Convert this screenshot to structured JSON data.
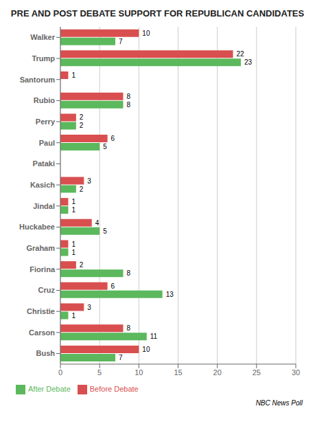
{
  "chart_data": {
    "type": "bar",
    "orientation": "horizontal",
    "title": "PRE AND POST DEBATE SUPPORT FOR REPUBLICAN CANDIDATES",
    "categories": [
      "Walker",
      "Trump",
      "Santorum",
      "Rubio",
      "Perry",
      "Paul",
      "Pataki",
      "Kasich",
      "Jindal",
      "Huckabee",
      "Graham",
      "Fiorina",
      "Cruz",
      "Christie",
      "Carson",
      "Bush"
    ],
    "series": [
      {
        "name": "Before Debate",
        "color": "#d94f4f",
        "values": [
          10,
          22,
          1,
          8,
          2,
          6,
          0,
          3,
          1,
          4,
          1,
          2,
          6,
          3,
          8,
          10
        ]
      },
      {
        "name": "After Debate",
        "color": "#5cb85c",
        "values": [
          7,
          23,
          0,
          8,
          2,
          5,
          0,
          2,
          1,
          5,
          1,
          8,
          13,
          1,
          11,
          7
        ]
      }
    ],
    "xlim": [
      0,
      30
    ],
    "xticks": [
      0,
      5,
      10,
      15,
      20,
      25,
      30
    ],
    "grid": true,
    "legend": "lower left",
    "data_labels": true,
    "annotations": [
      "NBC News Poll"
    ]
  }
}
